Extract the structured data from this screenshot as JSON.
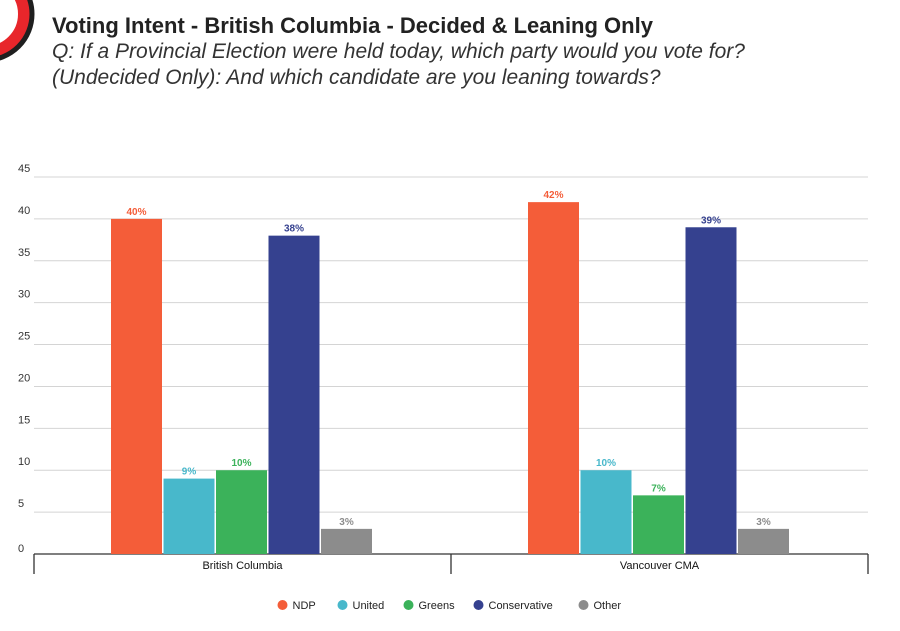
{
  "header": {
    "title": "Voting Intent - British Columbia - Decided & Leaning Only",
    "subtitle_line1": "Q: If a Provincial Election were held today, which party would you vote for?",
    "subtitle_line2": "(Undecided Only): And which candidate are you leaning towards?"
  },
  "colors": {
    "logo_ring": "#e8262b",
    "grid": "#d4d4d4",
    "axis": "#333333"
  },
  "chart_data": {
    "type": "bar",
    "title": "Voting Intent - British Columbia - Decided & Leaning Only",
    "categories": [
      "British Columbia",
      "Vancouver CMA"
    ],
    "series": [
      {
        "name": "NDP",
        "color": "#f45d39",
        "values": [
          40,
          42
        ],
        "labels": [
          "40%",
          "42%"
        ]
      },
      {
        "name": "United",
        "color": "#48b8cb",
        "values": [
          9,
          10
        ],
        "labels": [
          "9%",
          "10%"
        ]
      },
      {
        "name": "Greens",
        "color": "#3bb25a",
        "values": [
          10,
          7
        ],
        "labels": [
          "10%",
          "7%"
        ]
      },
      {
        "name": "Conservative",
        "color": "#35418f",
        "values": [
          38,
          39
        ],
        "labels": [
          "38%",
          "39%"
        ]
      },
      {
        "name": "Other",
        "color": "#8c8c8c",
        "values": [
          3,
          3
        ],
        "labels": [
          "3%",
          "3%"
        ]
      }
    ],
    "yticks": [
      0,
      5,
      10,
      15,
      20,
      25,
      30,
      35,
      40,
      45
    ],
    "ylim": [
      0,
      45
    ],
    "xlabel": "",
    "ylabel": "",
    "grid": true,
    "legend_position": "bottom"
  }
}
